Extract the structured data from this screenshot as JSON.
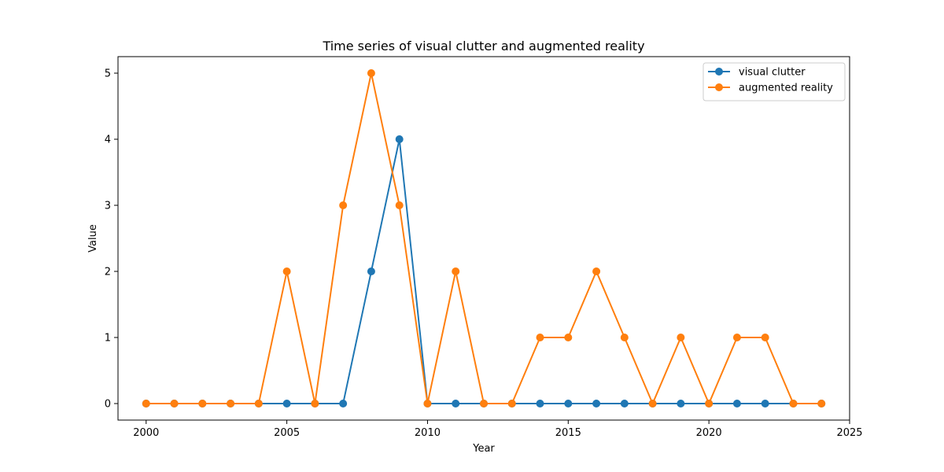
{
  "chart_data": {
    "type": "line",
    "title": "Time series of visual clutter and augmented reality",
    "xlabel": "Year",
    "ylabel": "Value",
    "xlim": [
      1999,
      2025
    ],
    "ylim": [
      -0.25,
      5.25
    ],
    "xticks": [
      2000,
      2005,
      2010,
      2015,
      2020,
      2025
    ],
    "yticks": [
      0,
      1,
      2,
      3,
      4,
      5
    ],
    "legend_position": "top-right",
    "grid": false,
    "x": [
      2000,
      2001,
      2002,
      2003,
      2004,
      2005,
      2006,
      2007,
      2008,
      2009,
      2010,
      2011,
      2012,
      2013,
      2014,
      2015,
      2016,
      2017,
      2018,
      2019,
      2020,
      2021,
      2022,
      2023,
      2024
    ],
    "series": [
      {
        "name": "visual clutter",
        "color": "#1f77b4",
        "values": [
          0,
          0,
          0,
          0,
          0,
          0,
          0,
          0,
          2,
          4,
          0,
          0,
          0,
          0,
          0,
          0,
          0,
          0,
          0,
          0,
          0,
          0,
          0,
          0,
          0
        ]
      },
      {
        "name": "augmented reality",
        "color": "#ff7f0e",
        "values": [
          0,
          0,
          0,
          0,
          0,
          2,
          0,
          3,
          5,
          3,
          0,
          2,
          0,
          0,
          1,
          1,
          2,
          1,
          0,
          1,
          0,
          1,
          1,
          0,
          0
        ]
      }
    ]
  }
}
